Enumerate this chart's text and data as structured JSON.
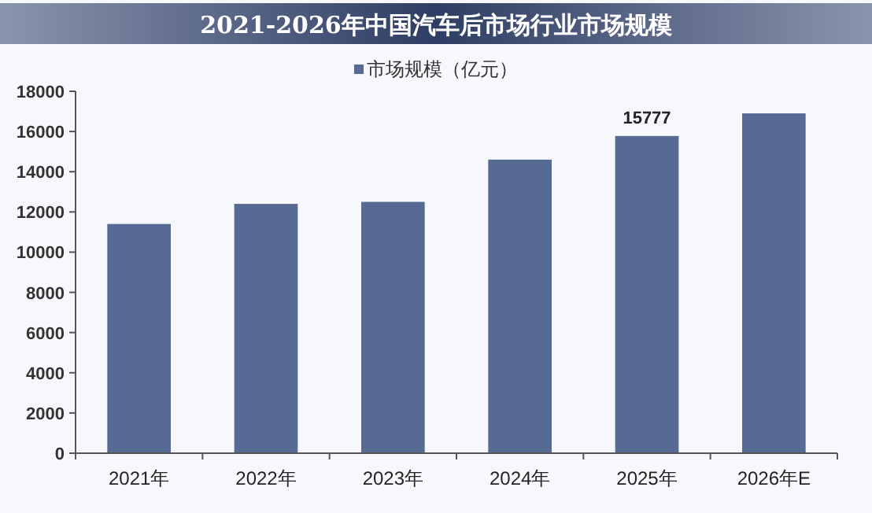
{
  "chart_data": {
    "type": "bar",
    "title": "2021-2026年中国汽车后市场行业市场规模",
    "categories": [
      "2021年",
      "2022年",
      "2023年",
      "2024年",
      "2025年",
      "2026年E"
    ],
    "series": [
      {
        "name": "市场规模（亿元）",
        "color": "#566a94",
        "values": [
          11400,
          12400,
          12500,
          14600,
          15777,
          16900
        ],
        "value_labels": [
          null,
          null,
          null,
          null,
          "15777",
          null
        ]
      }
    ],
    "ylim": [
      0,
      18000
    ],
    "yticks": [
      0,
      2000,
      4000,
      6000,
      8000,
      10000,
      12000,
      14000,
      16000,
      18000
    ],
    "grid": false,
    "legend": "top"
  }
}
